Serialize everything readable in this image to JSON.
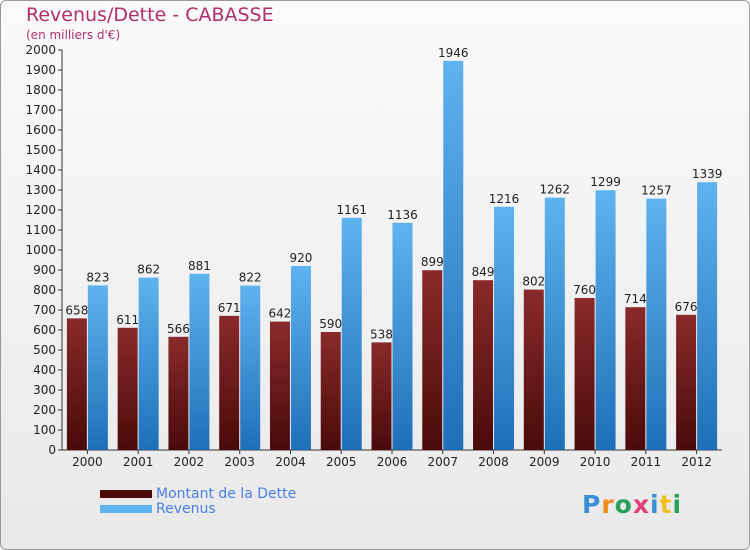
{
  "title": "Revenus/Dette - CABASSE",
  "subtitle": "(en milliers d'€)",
  "colors": {
    "dette_top": "#8a2a2a",
    "dette_bottom": "#4a0a0a",
    "revenus_top": "#5fb3ee",
    "revenus_bottom": "#1f6fb8",
    "title": "#b0306a",
    "legend_text": "#4a7fe0"
  },
  "logo": {
    "letters": [
      "P",
      "r",
      "o",
      "x",
      "i",
      "t",
      "i"
    ],
    "colors": [
      "#3a8fd8",
      "#f08c1a",
      "#2aa05a",
      "#e0407a",
      "#3a8fd8",
      "#f0c020",
      "#2aa05a"
    ]
  },
  "chart_data": {
    "type": "bar",
    "title": "Revenus/Dette - CABASSE",
    "subtitle": "(en milliers d'€)",
    "categories": [
      "2000",
      "2001",
      "2002",
      "2003",
      "2004",
      "2005",
      "2006",
      "2007",
      "2008",
      "2009",
      "2010",
      "2011",
      "2012"
    ],
    "series": [
      {
        "name": "Montant de la Dette",
        "values": [
          658,
          611,
          566,
          671,
          642,
          590,
          538,
          899,
          849,
          802,
          760,
          714,
          676
        ]
      },
      {
        "name": "Revenus",
        "values": [
          823,
          862,
          881,
          822,
          920,
          1161,
          1136,
          1946,
          1216,
          1262,
          1299,
          1257,
          1339
        ]
      }
    ],
    "ylim": [
      0,
      2000
    ],
    "yticks": [
      0,
      100,
      200,
      300,
      400,
      500,
      600,
      700,
      800,
      900,
      1000,
      1100,
      1200,
      1300,
      1400,
      1500,
      1600,
      1700,
      1800,
      1900,
      2000
    ],
    "grid": false,
    "legend_position": "bottom-left"
  }
}
